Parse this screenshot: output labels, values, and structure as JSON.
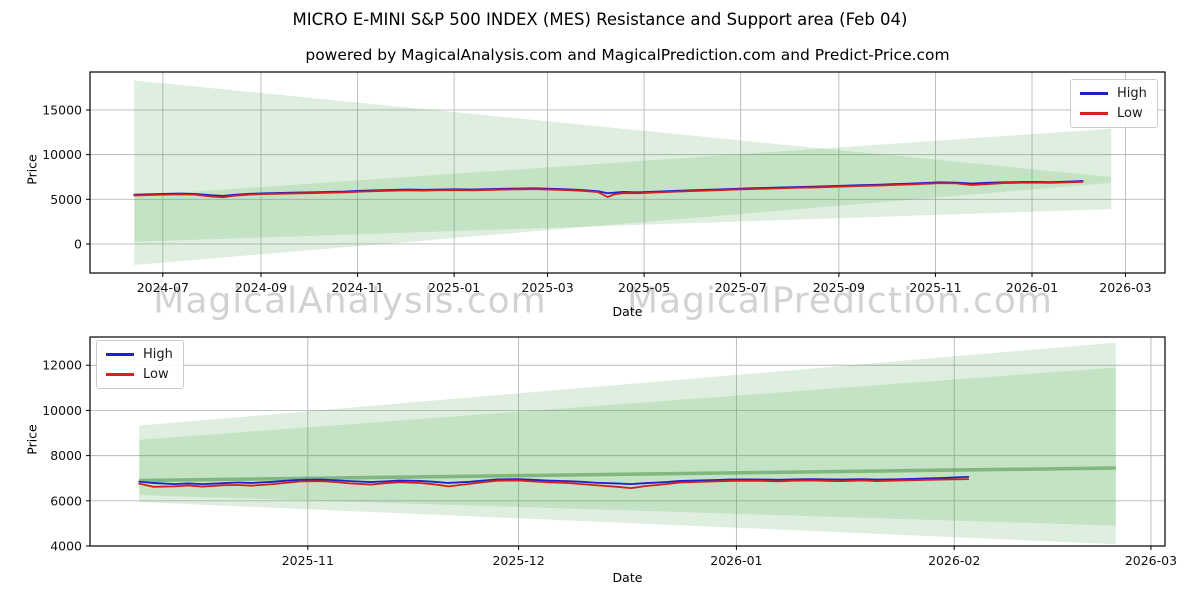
{
  "figure": {
    "title": "MICRO E-MINI S&P 500 INDEX (MES) Resistance and Support area (Feb 04)",
    "subtitle": "powered by MagicalAnalysis.com and MagicalPrediction.com and Predict-Price.com"
  },
  "watermark": {
    "analysis": "MagicalAnalysis.com",
    "prediction": "MagicalPrediction.com"
  },
  "colors": {
    "high_line": "#2020cc",
    "low_line": "#d42020",
    "band_fill": "rgba(80,165,80,0.18)",
    "median_green": "rgba(70,150,70,0.55)",
    "grid": "#b8b8b8",
    "frame": "#000000"
  },
  "chart_data": [
    {
      "type": "line",
      "xlabel": "Date",
      "ylabel": "Price",
      "x_range": [
        "2024-05-16",
        "2026-03-26"
      ],
      "y_range": [
        -3250,
        19250
      ],
      "x_ticks": [
        "2024-07",
        "2024-09",
        "2024-11",
        "2025-01",
        "2025-03",
        "2025-05",
        "2025-07",
        "2025-09",
        "2025-11",
        "2026-01",
        "2026-03"
      ],
      "y_ticks": [
        0,
        5000,
        10000,
        15000
      ],
      "grid": true,
      "legend_position": "top-right",
      "bands": [
        {
          "name": "resistance-wedge-converging",
          "points": [
            [
              "2024-06-13",
              18300
            ],
            [
              "2026-02-20",
              7500
            ],
            [
              "2026-02-20",
              6850
            ],
            [
              "2024-06-13",
              -2350
            ]
          ]
        },
        {
          "name": "support-wedge-expanding",
          "points": [
            [
              "2024-06-13",
              5400
            ],
            [
              "2026-02-20",
              12900
            ],
            [
              "2026-02-20",
              3900
            ],
            [
              "2024-06-13",
              250
            ]
          ]
        }
      ],
      "guide_lines": [],
      "series": [
        {
          "name": "High",
          "color": "#2020cc",
          "col": 1
        },
        {
          "name": "Low",
          "color": "#d42020",
          "col": 2
        }
      ],
      "data": [
        [
          "2024-06-13",
          5520,
          5430
        ],
        [
          "2024-06-21",
          5560,
          5470
        ],
        [
          "2024-07-01",
          5600,
          5510
        ],
        [
          "2024-07-11",
          5640,
          5550
        ],
        [
          "2024-07-21",
          5610,
          5520
        ],
        [
          "2024-08-01",
          5450,
          5300
        ],
        [
          "2024-08-08",
          5380,
          5230
        ],
        [
          "2024-08-15",
          5500,
          5400
        ],
        [
          "2024-08-25",
          5620,
          5530
        ],
        [
          "2024-09-04",
          5680,
          5590
        ],
        [
          "2024-09-14",
          5720,
          5630
        ],
        [
          "2024-09-24",
          5760,
          5670
        ],
        [
          "2024-10-04",
          5790,
          5700
        ],
        [
          "2024-10-14",
          5830,
          5740
        ],
        [
          "2024-10-24",
          5870,
          5780
        ],
        [
          "2024-11-03",
          5950,
          5860
        ],
        [
          "2024-11-13",
          6010,
          5920
        ],
        [
          "2024-11-23",
          6050,
          5960
        ],
        [
          "2024-12-03",
          6090,
          6000
        ],
        [
          "2024-12-13",
          6070,
          5980
        ],
        [
          "2024-12-23",
          6100,
          6010
        ],
        [
          "2025-01-02",
          6120,
          6030
        ],
        [
          "2025-01-12",
          6090,
          6000
        ],
        [
          "2025-01-22",
          6140,
          6050
        ],
        [
          "2025-02-01",
          6180,
          6090
        ],
        [
          "2025-02-11",
          6210,
          6120
        ],
        [
          "2025-02-21",
          6230,
          6140
        ],
        [
          "2025-03-03",
          6180,
          6090
        ],
        [
          "2025-03-13",
          6120,
          6030
        ],
        [
          "2025-03-23",
          6040,
          5950
        ],
        [
          "2025-04-02",
          5900,
          5800
        ],
        [
          "2025-04-08",
          5680,
          5250
        ],
        [
          "2025-04-12",
          5750,
          5550
        ],
        [
          "2025-04-18",
          5830,
          5700
        ],
        [
          "2025-04-28",
          5780,
          5680
        ],
        [
          "2025-05-08",
          5850,
          5760
        ],
        [
          "2025-05-18",
          5920,
          5830
        ],
        [
          "2025-05-28",
          5990,
          5900
        ],
        [
          "2025-06-07",
          6050,
          5960
        ],
        [
          "2025-06-17",
          6110,
          6020
        ],
        [
          "2025-06-27",
          6170,
          6080
        ],
        [
          "2025-07-07",
          6230,
          6140
        ],
        [
          "2025-07-17",
          6280,
          6190
        ],
        [
          "2025-07-27",
          6330,
          6240
        ],
        [
          "2025-08-06",
          6380,
          6290
        ],
        [
          "2025-08-16",
          6420,
          6330
        ],
        [
          "2025-08-26",
          6470,
          6380
        ],
        [
          "2025-09-05",
          6530,
          6440
        ],
        [
          "2025-09-15",
          6580,
          6490
        ],
        [
          "2025-09-25",
          6630,
          6540
        ],
        [
          "2025-10-05",
          6690,
          6600
        ],
        [
          "2025-10-15",
          6750,
          6660
        ],
        [
          "2025-10-25",
          6820,
          6730
        ],
        [
          "2025-11-04",
          6900,
          6810
        ],
        [
          "2025-11-14",
          6870,
          6780
        ],
        [
          "2025-11-24",
          6760,
          6600
        ],
        [
          "2025-12-04",
          6850,
          6700
        ],
        [
          "2025-12-14",
          6900,
          6820
        ],
        [
          "2025-12-24",
          6930,
          6850
        ],
        [
          "2026-01-03",
          6950,
          6870
        ],
        [
          "2026-01-13",
          6920,
          6840
        ],
        [
          "2026-01-23",
          6980,
          6900
        ],
        [
          "2026-02-02",
          7050,
          6950
        ]
      ]
    },
    {
      "type": "line",
      "xlabel": "Date",
      "ylabel": "Price",
      "x_range": [
        "2025-10-01",
        "2026-03-03"
      ],
      "y_range": [
        4000,
        13250
      ],
      "x_ticks": [
        "2025-11",
        "2025-12",
        "2026-01",
        "2026-02",
        "2026-03"
      ],
      "y_ticks": [
        4000,
        6000,
        8000,
        10000,
        12000
      ],
      "grid": true,
      "legend_position": "top-left",
      "bands": [
        {
          "name": "outer-forecast-fan",
          "points": [
            [
              "2025-10-08",
              9330
            ],
            [
              "2026-02-24",
              13000
            ],
            [
              "2026-02-24",
              4080
            ],
            [
              "2025-10-08",
              5950
            ]
          ]
        },
        {
          "name": "inner-forecast-fan",
          "points": [
            [
              "2025-10-08",
              8700
            ],
            [
              "2026-02-24",
              11900
            ],
            [
              "2026-02-24",
              4900
            ],
            [
              "2025-10-08",
              6250
            ]
          ]
        }
      ],
      "guide_lines": [
        {
          "name": "median-trend-line",
          "color": "rgba(70,150,70,0.55)",
          "width": 3.5,
          "points": [
            [
              "2025-10-08",
              6900
            ],
            [
              "2026-02-24",
              7450
            ]
          ]
        }
      ],
      "series": [
        {
          "name": "High",
          "color": "#2020cc",
          "col": 1
        },
        {
          "name": "Low",
          "color": "#d42020",
          "col": 2
        }
      ],
      "data": [
        [
          "2025-10-08",
          6850,
          6760
        ],
        [
          "2025-10-10",
          6790,
          6620
        ],
        [
          "2025-10-13",
          6740,
          6640
        ],
        [
          "2025-10-15",
          6770,
          6680
        ],
        [
          "2025-10-17",
          6740,
          6630
        ],
        [
          "2025-10-20",
          6780,
          6690
        ],
        [
          "2025-10-22",
          6810,
          6700
        ],
        [
          "2025-10-24",
          6790,
          6670
        ],
        [
          "2025-10-27",
          6840,
          6740
        ],
        [
          "2025-10-29",
          6890,
          6800
        ],
        [
          "2025-10-31",
          6930,
          6860
        ],
        [
          "2025-11-03",
          6940,
          6870
        ],
        [
          "2025-11-05",
          6910,
          6830
        ],
        [
          "2025-11-07",
          6870,
          6770
        ],
        [
          "2025-11-10",
          6830,
          6720
        ],
        [
          "2025-11-12",
          6860,
          6780
        ],
        [
          "2025-11-14",
          6900,
          6820
        ],
        [
          "2025-11-17",
          6880,
          6790
        ],
        [
          "2025-11-19",
          6840,
          6730
        ],
        [
          "2025-11-21",
          6790,
          6640
        ],
        [
          "2025-11-24",
          6840,
          6750
        ],
        [
          "2025-11-26",
          6900,
          6830
        ],
        [
          "2025-11-28",
          6950,
          6890
        ],
        [
          "2025-12-01",
          6960,
          6900
        ],
        [
          "2025-12-03",
          6930,
          6860
        ],
        [
          "2025-12-05",
          6900,
          6820
        ],
        [
          "2025-12-08",
          6870,
          6790
        ],
        [
          "2025-12-10",
          6840,
          6740
        ],
        [
          "2025-12-12",
          6800,
          6690
        ],
        [
          "2025-12-15",
          6770,
          6620
        ],
        [
          "2025-12-17",
          6740,
          6560
        ],
        [
          "2025-12-19",
          6780,
          6650
        ],
        [
          "2025-12-22",
          6830,
          6740
        ],
        [
          "2025-12-24",
          6880,
          6810
        ],
        [
          "2025-12-29",
          6920,
          6860
        ],
        [
          "2025-12-31",
          6940,
          6880
        ],
        [
          "2026-01-02",
          6950,
          6890
        ],
        [
          "2026-01-05",
          6940,
          6880
        ],
        [
          "2026-01-07",
          6930,
          6860
        ],
        [
          "2026-01-09",
          6950,
          6890
        ],
        [
          "2026-01-12",
          6960,
          6900
        ],
        [
          "2026-01-14",
          6950,
          6880
        ],
        [
          "2026-01-16",
          6940,
          6870
        ],
        [
          "2026-01-19",
          6960,
          6900
        ],
        [
          "2026-01-21",
          6940,
          6870
        ],
        [
          "2026-01-23",
          6950,
          6890
        ],
        [
          "2026-01-26",
          6970,
          6910
        ],
        [
          "2026-01-28",
          6990,
          6930
        ],
        [
          "2026-01-30",
          7010,
          6940
        ],
        [
          "2026-02-03",
          7060,
          6960
        ]
      ]
    }
  ]
}
